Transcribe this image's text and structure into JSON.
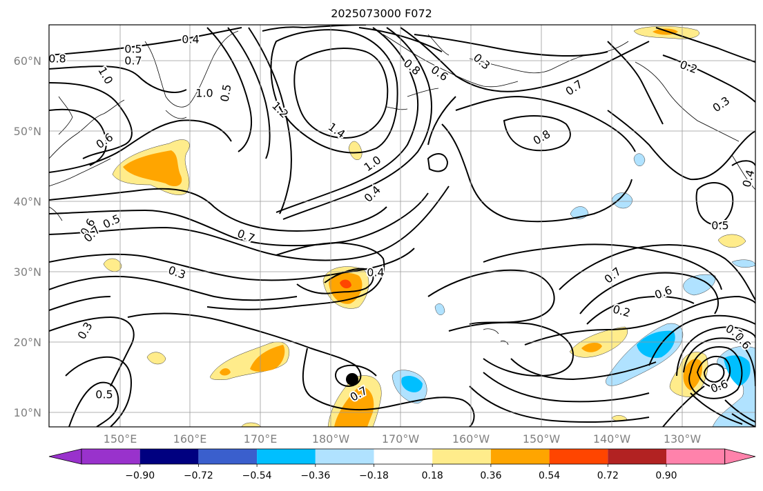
{
  "title": "2025073000 F072",
  "map": {
    "lat_labels": [
      "60°N",
      "50°N",
      "40°N",
      "30°N",
      "20°N",
      "10°N"
    ],
    "lon_labels": [
      "150°E",
      "160°E",
      "170°E",
      "180°W",
      "170°W",
      "160°W",
      "150°W",
      "140°W",
      "130°W"
    ],
    "contour_labels": [
      "0.8",
      "0.5",
      "0.7",
      "0.4",
      "1.0",
      "0.5",
      "1.0",
      "1.2",
      "1.4",
      "0.8",
      "0.6",
      "0.3",
      "0.7",
      "0.2",
      "0.6",
      "0.8",
      "1.0",
      "0.4",
      "0.7",
      "0.6",
      "0.5",
      "0.7",
      "0.3",
      "0.4",
      "0.5",
      "0.7",
      "0.6",
      "0.2",
      "0.3",
      "0.3",
      "0.5",
      "0.7",
      "0.4",
      "0.3",
      "0.6",
      "0.6"
    ]
  },
  "colorbar": {
    "colors": [
      "#9932cc",
      "#000080",
      "#3a5fcd",
      "#00bfff",
      "#b0e2ff",
      "#ffffff",
      "#ffec8b",
      "#ffa500",
      "#ff4500",
      "#b22222",
      "#ff82ab"
    ],
    "tick_labels": [
      "−0.90",
      "−0.72",
      "−0.54",
      "−0.36",
      "−0.18",
      "0.18",
      "0.36",
      "0.54",
      "0.72",
      "0.90"
    ]
  },
  "colors": {
    "orange": "#ffa500",
    "yellow": "#ffec8b",
    "red_orange": "#ff4500",
    "light_blue": "#b0e2ff",
    "sky_blue": "#00bfff",
    "grid": "#999999"
  }
}
